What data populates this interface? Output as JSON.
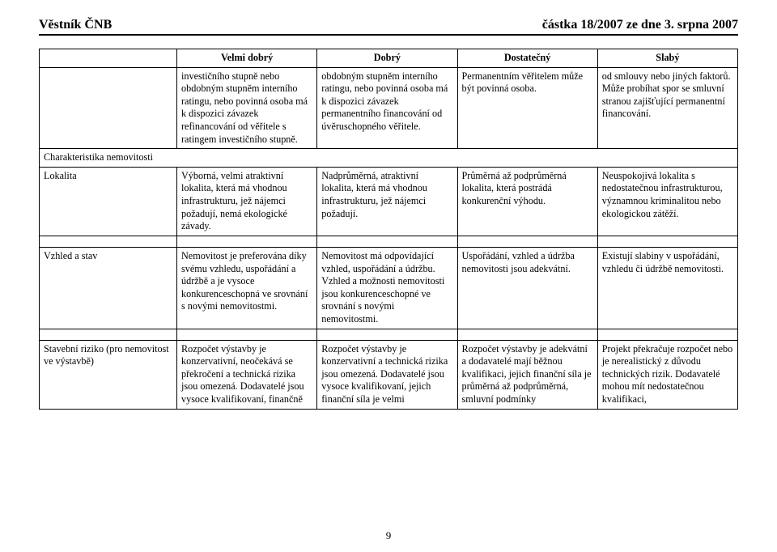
{
  "header": {
    "left": "Věstník ČNB",
    "right": "částka 18/2007 ze dne 3. srpna 2007"
  },
  "columns": {
    "h0": "",
    "h1": "Velmi dobrý",
    "h2": "Dobrý",
    "h3": "Dostatečný",
    "h4": "Slabý"
  },
  "rows": {
    "r0": {
      "label": "",
      "c1": "investičního stupně nebo obdobným stupněm interního ratingu, nebo povinná osoba má k dispozici závazek refinancování od věřitele s ratingem investičního stupně.",
      "c2": "obdobným stupněm interního ratingu, nebo povinná osoba má k dispozici závazek permanentního financování od úvěruschopného věřitele.",
      "c3": "Permanentním věřitelem může být povinná osoba.",
      "c4": "od smlouvy nebo jiných faktorů. Může probíhat spor se smluvní stranou zajišťující permanentní financování."
    },
    "charakteristika_label": "Charakteristika nemovitosti",
    "lokalita": {
      "label": "Lokalita",
      "c1": "Výborná, velmi atraktivní lokalita, která má vhodnou infrastrukturu, jež nájemci požadují, nemá ekologické závady.",
      "c2": "Nadprůměrná, atraktivní lokalita, která má vhodnou infrastrukturu, jež nájemci požadují.",
      "c3": "Průměrná až podprůměrná lokalita, která postrádá konkurenční výhodu.",
      "c4": "Neuspokojivá lokalita s nedostatečnou infrastrukturou, významnou kriminalitou nebo ekologickou zátěží."
    },
    "vzhled": {
      "label": "Vzhled a stav",
      "c1": "Nemovitost je preferována díky svému vzhledu, uspořádání a údržbě a je vysoce konkurenceschopná ve srovnání s novými nemovitostmi.",
      "c2": "Nemovitost má odpovídající vzhled, uspořádání a údržbu. Vzhled a možnosti nemovitosti jsou konkurenceschopné ve srovnání s novými nemovitostmi.",
      "c3": "Uspořádání, vzhled a údržba nemovitosti jsou adekvátní.",
      "c4": "Existují slabiny v uspořádání, vzhledu či údržbě nemovitosti."
    },
    "stavebni": {
      "label": "Stavební riziko (pro nemovitost ve výstavbě)",
      "c1": "Rozpočet výstavby je konzervativní, neočekává se překročení a technická rizika jsou omezená. Dodavatelé jsou vysoce kvalifikovaní, finančně",
      "c2": "Rozpočet výstavby je konzervativní a technická rizika jsou omezená. Dodavatelé jsou vysoce kvalifikovaní, jejich finanční síla je velmi",
      "c3": "Rozpočet výstavby je adekvátní a dodavatelé mají běžnou kvalifikaci, jejich finanční síla je průměrná až podprůměrná, smluvní podmínky",
      "c4": "Projekt překračuje rozpočet nebo je nerealistický z důvodu technických rizik. Dodavatelé mohou mít nedostatečnou kvalifikaci,"
    }
  },
  "page_number": "9"
}
